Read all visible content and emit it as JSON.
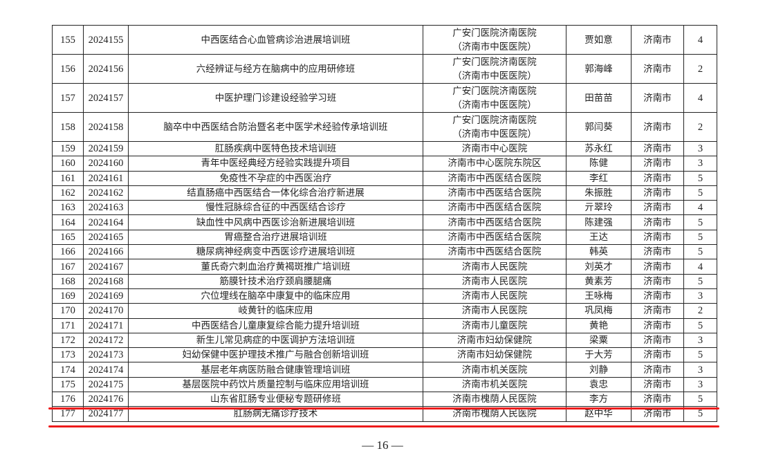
{
  "table": {
    "rows": [
      {
        "no": "155",
        "code": "2024155",
        "course": "中西医结合心血管病诊治进展培训班",
        "unit": [
          "广安门医院济南医院",
          "（济南市中医医院）"
        ],
        "leader": "贾如意",
        "city": "济南市",
        "credits": "4"
      },
      {
        "no": "156",
        "code": "2024156",
        "course": "六经辨证与经方在脑病中的应用研修班",
        "unit": [
          "广安门医院济南医院",
          "（济南市中医医院）"
        ],
        "leader": "郭海峰",
        "city": "济南市",
        "credits": "2"
      },
      {
        "no": "157",
        "code": "2024157",
        "course": "中医护理门诊建设经验学习班",
        "unit": [
          "广安门医院济南医院",
          "（济南市中医医院）"
        ],
        "leader": "田苗苗",
        "city": "济南市",
        "credits": "4"
      },
      {
        "no": "158",
        "code": "2024158",
        "course": "脑卒中中西医结合防治暨名老中医学术经验传承培训班",
        "unit": [
          "广安门医院济南医院",
          "（济南市中医医院）"
        ],
        "leader": "郭闫葵",
        "city": "济南市",
        "credits": "2"
      },
      {
        "no": "159",
        "code": "2024159",
        "course": "肛肠疾病中医特色技术培训班",
        "unit": [
          "济南市中心医院"
        ],
        "leader": "苏永红",
        "city": "济南市",
        "credits": "3"
      },
      {
        "no": "160",
        "code": "2024160",
        "course": "青年中医经典经方经验实践提升项目",
        "unit": [
          "济南市中心医院东院区"
        ],
        "leader": "陈健",
        "city": "济南市",
        "credits": "3"
      },
      {
        "no": "161",
        "code": "2024161",
        "course": "免疫性不孕症的中西医治疗",
        "unit": [
          "济南市中西医结合医院"
        ],
        "leader": "李红",
        "city": "济南市",
        "credits": "5"
      },
      {
        "no": "162",
        "code": "2024162",
        "course": "结直肠癌中西医结合一体化综合治疗新进展",
        "unit": [
          "济南市中西医结合医院"
        ],
        "leader": "朱振胜",
        "city": "济南市",
        "credits": "5"
      },
      {
        "no": "163",
        "code": "2024163",
        "course": "慢性冠脉综合征的中西医结合诊疗",
        "unit": [
          "济南市中西医结合医院"
        ],
        "leader": "亓翠玲",
        "city": "济南市",
        "credits": "4"
      },
      {
        "no": "164",
        "code": "2024164",
        "course": "缺血性中风病中西医诊治新进展培训班",
        "unit": [
          "济南市中西医结合医院"
        ],
        "leader": "陈建强",
        "city": "济南市",
        "credits": "5"
      },
      {
        "no": "165",
        "code": "2024165",
        "course": "胃癌整合治疗进展培训班",
        "unit": [
          "济南市中西医结合医院"
        ],
        "leader": "王达",
        "city": "济南市",
        "credits": "5"
      },
      {
        "no": "166",
        "code": "2024166",
        "course": "糖尿病神经病变中西医诊疗进展培训班",
        "unit": [
          "济南市中西医结合医院"
        ],
        "leader": "韩英",
        "city": "济南市",
        "credits": "5"
      },
      {
        "no": "167",
        "code": "2024167",
        "course": "董氏奇穴刺血治疗黄褐斑推广培训班",
        "unit": [
          "济南市人民医院"
        ],
        "leader": "刘英才",
        "city": "济南市",
        "credits": "4"
      },
      {
        "no": "168",
        "code": "2024168",
        "course": "筋膜针技术治疗颈肩腰腿痛",
        "unit": [
          "济南市人民医院"
        ],
        "leader": "黄素芳",
        "city": "济南市",
        "credits": "5"
      },
      {
        "no": "169",
        "code": "2024169",
        "course": "穴位埋线在脑卒中康复中的临床应用",
        "unit": [
          "济南市人民医院"
        ],
        "leader": "王咏梅",
        "city": "济南市",
        "credits": "3"
      },
      {
        "no": "170",
        "code": "2024170",
        "course": "岐黄针的临床应用",
        "unit": [
          "济南市人民医院"
        ],
        "leader": "巩凤梅",
        "city": "济南市",
        "credits": "2"
      },
      {
        "no": "171",
        "code": "2024171",
        "course": "中西医结合儿童康复综合能力提升培训班",
        "unit": [
          "济南市儿童医院"
        ],
        "leader": "黄艳",
        "city": "济南市",
        "credits": "5"
      },
      {
        "no": "172",
        "code": "2024172",
        "course": "新生儿常见病症的中医调护方法培训班",
        "unit": [
          "济南市妇幼保健院"
        ],
        "leader": "梁粟",
        "city": "济南市",
        "credits": "3"
      },
      {
        "no": "173",
        "code": "2024173",
        "course": "妇幼保健中医护理技术推广与融合创新培训班",
        "unit": [
          "济南市妇幼保健院"
        ],
        "leader": "于大芳",
        "city": "济南市",
        "credits": "5"
      },
      {
        "no": "174",
        "code": "2024174",
        "course": "基层老年病医防融合健康管理培训班",
        "unit": [
          "济南市机关医院"
        ],
        "leader": "刘静",
        "city": "济南市",
        "credits": "3"
      },
      {
        "no": "175",
        "code": "2024175",
        "course": "基层医院中药饮片质量控制与临床应用培训班",
        "unit": [
          "济南市机关医院"
        ],
        "leader": "袁忠",
        "city": "济南市",
        "credits": "3"
      },
      {
        "no": "176",
        "code": "2024176",
        "course": "山东省肛肠专业便秘专题研修班",
        "unit": [
          "济南市槐荫人民医院"
        ],
        "leader": "李方",
        "city": "济南市",
        "credits": "5"
      },
      {
        "no": "177",
        "code": "2024177",
        "course": "肛肠病无痛诊疗技术",
        "unit": [
          "济南市槐荫人民医院"
        ],
        "leader": "赵中华",
        "city": "济南市",
        "credits": "5"
      }
    ]
  },
  "annotation": {
    "color": "#ee1c1c"
  },
  "footer": {
    "page_number": "— 16 —"
  }
}
